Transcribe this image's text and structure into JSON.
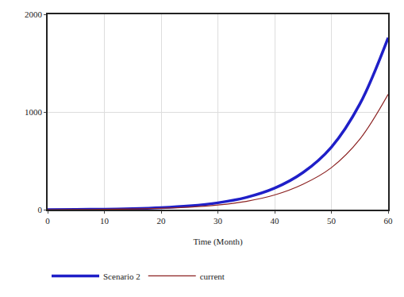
{
  "chart_data": {
    "type": "line",
    "x_label": "Time (Month)",
    "x": [
      0,
      5,
      10,
      15,
      20,
      25,
      30,
      35,
      40,
      45,
      50,
      55,
      60
    ],
    "series": [
      {
        "name": "Scenario 2",
        "color": "#1f1fc8",
        "values": [
          0,
          2,
          5,
          10,
          20,
          38,
          70,
          125,
          220,
          380,
          640,
          1080,
          1760
        ]
      },
      {
        "name": "current",
        "color": "#8b2020",
        "values": [
          0,
          1,
          3,
          7,
          14,
          26,
          48,
          85,
          150,
          260,
          430,
          720,
          1180
        ]
      }
    ],
    "xlim": [
      0,
      60
    ],
    "xticks": [
      0,
      10,
      20,
      30,
      40,
      50,
      60
    ],
    "ylim": [
      0,
      2000
    ],
    "yticks": [
      0,
      1000,
      2000
    ],
    "grid": true,
    "legend": "bottom"
  }
}
